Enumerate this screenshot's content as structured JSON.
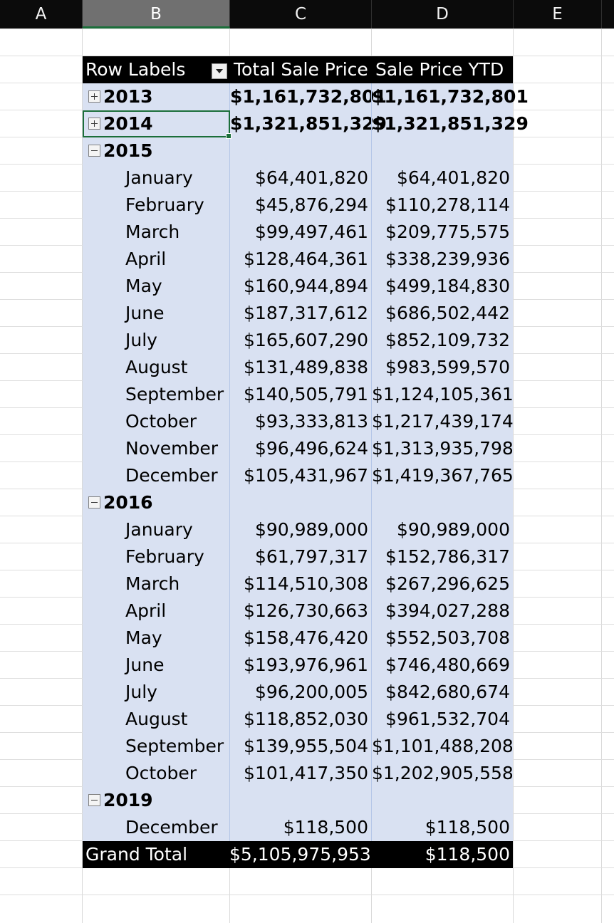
{
  "columns": [
    "A",
    "B",
    "C",
    "D",
    "E"
  ],
  "pivot": {
    "headers": {
      "row_labels": "Row Labels",
      "total_sale_price": "Total Sale Price",
      "sale_price_ytd": "Sale Price YTD"
    },
    "years": {
      "y2013": {
        "label": "2013",
        "total": "$1,161,732,801",
        "ytd": "$1,161,732,801"
      },
      "y2014": {
        "label": "2014",
        "total": "$1,321,851,329",
        "ytd": "$1,321,851,329"
      },
      "y2015": {
        "label": "2015",
        "months": [
          {
            "label": "January",
            "total": "$64,401,820",
            "ytd": "$64,401,820"
          },
          {
            "label": "February",
            "total": "$45,876,294",
            "ytd": "$110,278,114"
          },
          {
            "label": "March",
            "total": "$99,497,461",
            "ytd": "$209,775,575"
          },
          {
            "label": "April",
            "total": "$128,464,361",
            "ytd": "$338,239,936"
          },
          {
            "label": "May",
            "total": "$160,944,894",
            "ytd": "$499,184,830"
          },
          {
            "label": "June",
            "total": "$187,317,612",
            "ytd": "$686,502,442"
          },
          {
            "label": "July",
            "total": "$165,607,290",
            "ytd": "$852,109,732"
          },
          {
            "label": "August",
            "total": "$131,489,838",
            "ytd": "$983,599,570"
          },
          {
            "label": "September",
            "total": "$140,505,791",
            "ytd": "$1,124,105,361"
          },
          {
            "label": "October",
            "total": "$93,333,813",
            "ytd": "$1,217,439,174"
          },
          {
            "label": "November",
            "total": "$96,496,624",
            "ytd": "$1,313,935,798"
          },
          {
            "label": "December",
            "total": "$105,431,967",
            "ytd": "$1,419,367,765"
          }
        ]
      },
      "y2016": {
        "label": "2016",
        "months": [
          {
            "label": "January",
            "total": "$90,989,000",
            "ytd": "$90,989,000"
          },
          {
            "label": "February",
            "total": "$61,797,317",
            "ytd": "$152,786,317"
          },
          {
            "label": "March",
            "total": "$114,510,308",
            "ytd": "$267,296,625"
          },
          {
            "label": "April",
            "total": "$126,730,663",
            "ytd": "$394,027,288"
          },
          {
            "label": "May",
            "total": "$158,476,420",
            "ytd": "$552,503,708"
          },
          {
            "label": "June",
            "total": "$193,976,961",
            "ytd": "$746,480,669"
          },
          {
            "label": "July",
            "total": "$96,200,005",
            "ytd": "$842,680,674"
          },
          {
            "label": "August",
            "total": "$118,852,030",
            "ytd": "$961,532,704"
          },
          {
            "label": "September",
            "total": "$139,955,504",
            "ytd": "$1,101,488,208"
          },
          {
            "label": "October",
            "total": "$101,417,350",
            "ytd": "$1,202,905,558"
          }
        ]
      },
      "y2019": {
        "label": "2019",
        "months": [
          {
            "label": "December",
            "total": "$118,500",
            "ytd": "$118,500"
          }
        ]
      }
    },
    "grand_total": {
      "label": "Grand Total",
      "total": "$5,105,975,953",
      "ytd": "$118,500"
    }
  },
  "colors": {
    "header_bg": "#000000",
    "body_bg": "#d9e1f2",
    "selection": "#1b6e3a"
  },
  "icons": {
    "expand": "plus-box-icon",
    "collapse": "minus-box-icon",
    "filter": "filter-dropdown-icon"
  }
}
